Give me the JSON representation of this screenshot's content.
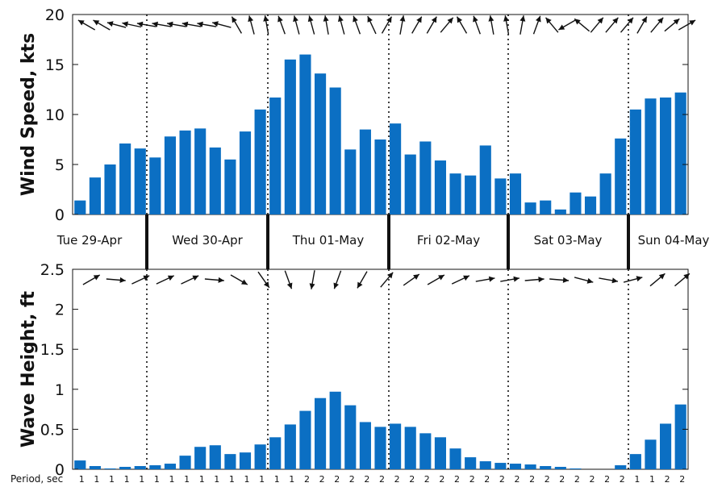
{
  "chart_data": [
    {
      "type": "bar",
      "ylabel": "Wind Speed, kts",
      "ylim": [
        0,
        20
      ],
      "yticks": [
        0,
        5,
        10,
        15,
        20
      ],
      "bar_color": "#0b6fc3",
      "grid": false,
      "values": [
        1.4,
        3.7,
        5.0,
        7.1,
        6.6,
        5.7,
        7.8,
        8.4,
        8.6,
        6.7,
        5.5,
        8.3,
        10.5,
        11.7,
        15.5,
        16.0,
        14.1,
        12.7,
        6.5,
        8.5,
        7.5,
        9.1,
        6.0,
        7.3,
        5.4,
        4.1,
        3.9,
        6.9,
        3.6,
        4.1,
        1.2,
        1.4,
        0.5,
        2.2,
        1.8,
        4.1,
        7.6,
        10.5,
        11.6,
        11.7,
        12.2
      ],
      "direction_arrows_deg": [
        300,
        300,
        285,
        282,
        280,
        280,
        280,
        280,
        280,
        285,
        330,
        345,
        350,
        340,
        345,
        345,
        350,
        345,
        340,
        335,
        30,
        10,
        30,
        30,
        40,
        330,
        340,
        350,
        350,
        10,
        20,
        320,
        240,
        310,
        40,
        40,
        40,
        30,
        40,
        50,
        60
      ]
    },
    {
      "type": "bar",
      "ylabel": "Wave Height, ft",
      "ylim": [
        0,
        2.5
      ],
      "yticks": [
        0,
        0.5,
        1,
        1.5,
        2,
        2.5
      ],
      "bar_color": "#0b6fc3",
      "grid": false,
      "values": [
        0.11,
        0.04,
        0.01,
        0.03,
        0.04,
        0.05,
        0.07,
        0.17,
        0.28,
        0.3,
        0.19,
        0.21,
        0.31,
        0.4,
        0.56,
        0.73,
        0.89,
        0.97,
        0.8,
        0.59,
        0.53,
        0.57,
        0.53,
        0.45,
        0.4,
        0.26,
        0.15,
        0.1,
        0.08,
        0.07,
        0.06,
        0.04,
        0.03,
        0.01,
        0.0,
        0.0,
        0.05,
        0.19,
        0.37,
        0.57,
        0.81
      ],
      "direction_arrows_deg": [
        60,
        95,
        65,
        65,
        65,
        95,
        120,
        145,
        160,
        190,
        200,
        210,
        40,
        55,
        60,
        65,
        80,
        80,
        85,
        95,
        105,
        100,
        75,
        50,
        50
      ],
      "period_label": "Period, sec",
      "periods": [
        "1",
        "1",
        "1",
        "1",
        "1",
        "1",
        "1",
        "1",
        "1",
        "1",
        "1",
        "1",
        "1",
        "1",
        "1",
        "2",
        "2",
        "2",
        "2",
        "2",
        "2",
        "2",
        "2",
        "2",
        "2",
        "2",
        "2",
        "2",
        "2",
        "2",
        "2",
        "2",
        "2",
        "2",
        "2",
        "2",
        "2",
        "1",
        "1",
        "2",
        "2"
      ]
    }
  ],
  "day_labels": [
    "Tue 29-Apr",
    "Wed 30-Apr",
    "Thu 01-May",
    "Fri 02-May",
    "Sat 03-May",
    "Sun 04-May"
  ]
}
